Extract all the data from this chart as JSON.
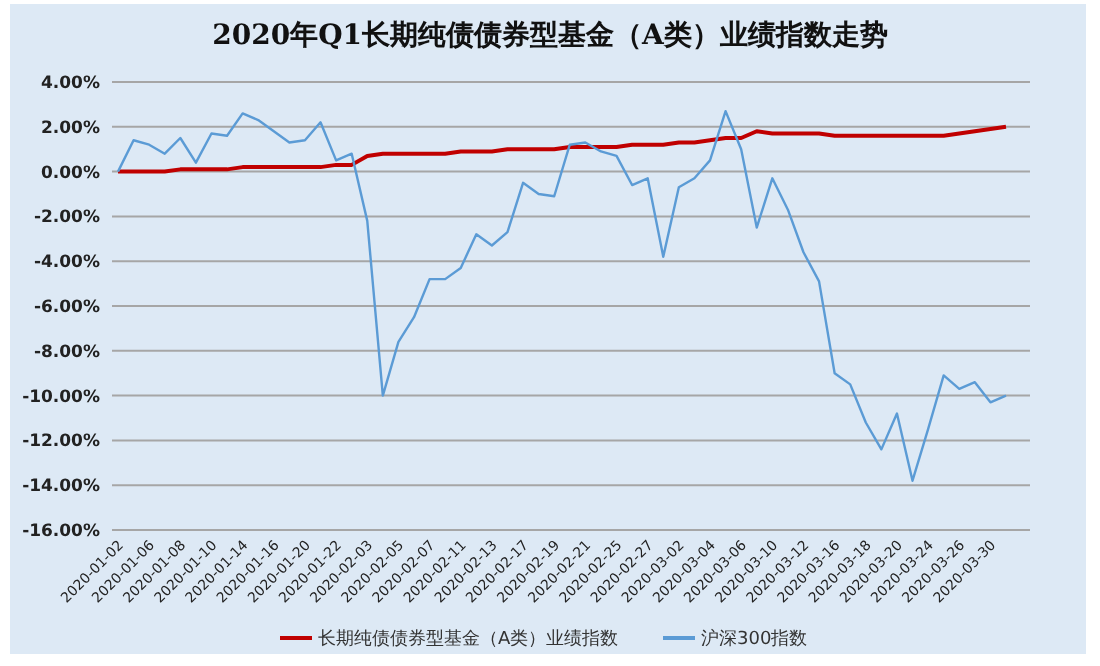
{
  "chart_data": {
    "type": "line",
    "title": "2020年Q1长期纯债债券型基金（A类）业绩指数走势",
    "categories": [
      "2020-01-02",
      null,
      "2020-01-06",
      null,
      "2020-01-08",
      null,
      "2020-01-10",
      null,
      "2020-01-14",
      null,
      "2020-01-16",
      null,
      "2020-01-20",
      null,
      "2020-01-22",
      null,
      "2020-02-03",
      null,
      "2020-02-05",
      null,
      "2020-02-07",
      null,
      "2020-02-11",
      null,
      "2020-02-13",
      null,
      "2020-02-17",
      null,
      "2020-02-19",
      null,
      "2020-02-21",
      null,
      "2020-02-25",
      null,
      "2020-02-27",
      null,
      "2020-03-02",
      null,
      "2020-03-04",
      null,
      "2020-03-06",
      null,
      "2020-03-10",
      null,
      "2020-03-12",
      null,
      "2020-03-16",
      null,
      "2020-03-18",
      null,
      "2020-03-20",
      null,
      "2020-03-24",
      null,
      "2020-03-26",
      null,
      "2020-03-30",
      null
    ],
    "series": [
      {
        "name": "长期纯债债券型基金（A类）业绩指数",
        "color": "#c00000",
        "values": [
          0,
          0,
          0,
          0,
          0.1,
          0.1,
          0.1,
          0.1,
          0.2,
          0.2,
          0.2,
          0.2,
          0.2,
          0.2,
          0.3,
          0.3,
          0.7,
          0.8,
          0.8,
          0.8,
          0.8,
          0.8,
          0.9,
          0.9,
          0.9,
          1.0,
          1.0,
          1.0,
          1.0,
          1.1,
          1.1,
          1.1,
          1.1,
          1.2,
          1.2,
          1.2,
          1.3,
          1.3,
          1.4,
          1.5,
          1.5,
          1.8,
          1.7,
          1.7,
          1.7,
          1.7,
          1.6,
          1.6,
          1.6,
          1.6,
          1.6,
          1.6,
          1.6,
          1.6,
          1.7,
          1.8,
          1.9,
          2.0
        ]
      },
      {
        "name": "沪深300指数",
        "color": "#5b9bd5",
        "values": [
          0,
          1.4,
          1.2,
          0.8,
          1.5,
          0.4,
          1.7,
          1.6,
          2.6,
          2.3,
          1.8,
          1.3,
          1.4,
          2.2,
          0.5,
          0.8,
          -2.2,
          -10.0,
          -7.6,
          -6.5,
          -4.8,
          -4.8,
          -4.3,
          -2.8,
          -3.3,
          -2.7,
          -0.5,
          -1.0,
          -1.1,
          1.2,
          1.3,
          0.9,
          0.7,
          -0.6,
          -0.3,
          -3.8,
          -0.7,
          -0.3,
          0.5,
          2.7,
          1.0,
          -2.5,
          -0.3,
          -1.7,
          -3.6,
          -4.9,
          -9.0,
          -9.5,
          -11.2,
          -12.4,
          -10.8,
          -13.8,
          -11.5,
          -9.1,
          -9.7,
          -9.4,
          -10.3,
          -10.0
        ]
      }
    ],
    "ylim": [
      -16,
      4
    ],
    "yticks": [
      {
        "value": -16,
        "label": "-16.00%"
      },
      {
        "value": -14,
        "label": "-14.00%"
      },
      {
        "value": -12,
        "label": "-12.00%"
      },
      {
        "value": -10,
        "label": "-10.00%"
      },
      {
        "value": -8,
        "label": "-8.00%"
      },
      {
        "value": -6,
        "label": "-6.00%"
      },
      {
        "value": -4,
        "label": "-4.00%"
      },
      {
        "value": -2,
        "label": "-2.00%"
      },
      {
        "value": 0,
        "label": "0.00%"
      },
      {
        "value": 2,
        "label": "2.00%"
      },
      {
        "value": 4,
        "label": "4.00%"
      }
    ],
    "grid": "y",
    "legend": "bottom",
    "marker": "none",
    "line_style": "solid"
  }
}
